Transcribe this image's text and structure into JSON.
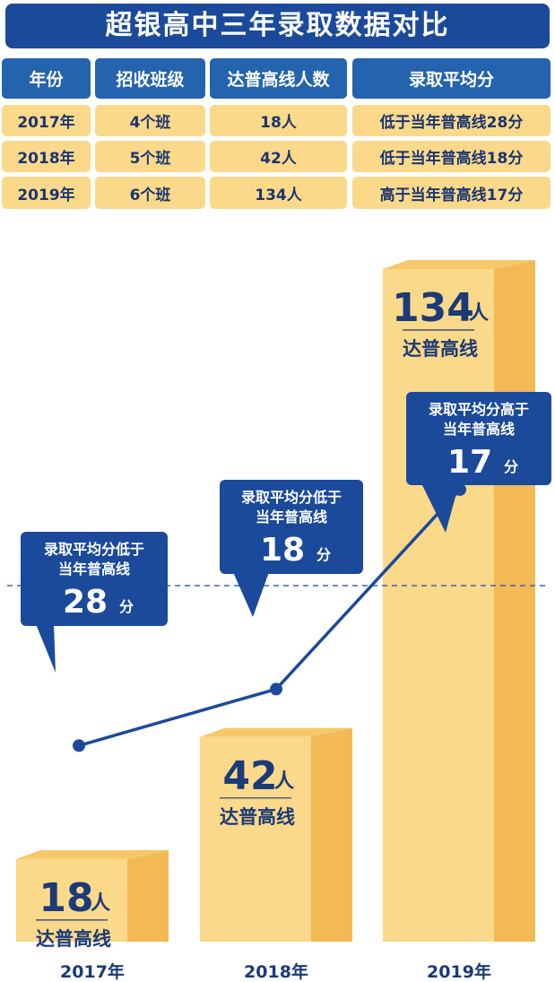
{
  "title": "超银高中三年录取数据对比",
  "table": {
    "headers": [
      "年份",
      "招收班级",
      "达普高线人数",
      "录取平均分"
    ],
    "rows": [
      [
        "2017年",
        "4个班",
        "18人",
        "低于当年普高线28分"
      ],
      [
        "2018年",
        "5个班",
        "42人",
        "低于当年普高线18分"
      ],
      [
        "2019年",
        "6个班",
        "134人",
        "高于当年普高线17分"
      ]
    ]
  },
  "chart_data": {
    "type": "bar",
    "categories": [
      "2017年",
      "2018年",
      "2019年"
    ],
    "series": [
      {
        "values": [
          18,
          42,
          134
        ],
        "unit": "人",
        "sublabel": "达普高线"
      },
      {
        "type": "line",
        "values": [
          -28,
          -18,
          17
        ],
        "unit": "分"
      }
    ],
    "callouts": [
      {
        "line1": "录取平均分低于",
        "line2": "当年普高线",
        "value": "28",
        "unit": "分"
      },
      {
        "line1": "录取平均分低于",
        "line2": "当年普高线",
        "value": "18",
        "unit": "分"
      },
      {
        "line1": "录取平均分高于",
        "line2": "当年普高线",
        "value": "17",
        "unit": "分"
      }
    ],
    "colors": {
      "bar_front": "#fbd98a",
      "bar_side": "#f2b955",
      "navy": "#1b4a9b"
    }
  }
}
